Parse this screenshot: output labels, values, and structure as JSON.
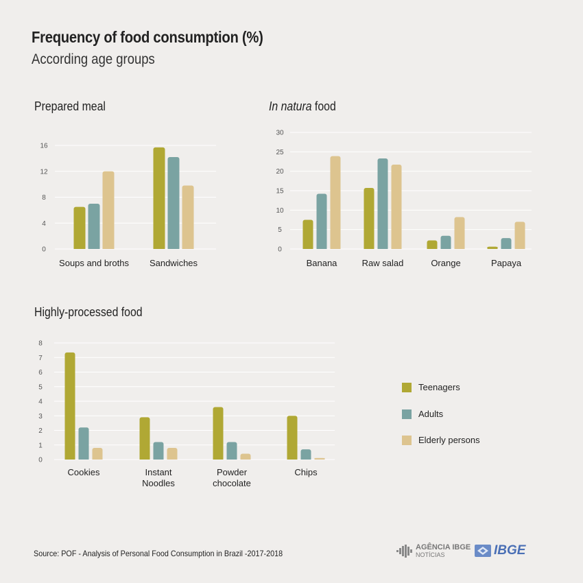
{
  "header": {
    "title": "Frequency of food consumption (%)",
    "subtitle": "According age groups"
  },
  "colors": {
    "teenagers": "#b0a834",
    "adults": "#7aa3a2",
    "elderly": "#ddc48f",
    "grid": "#ffffff",
    "background": "#f0eeec"
  },
  "legend": {
    "items": [
      "Teenagers",
      "Adults",
      "Elderly persons"
    ]
  },
  "chart_data": [
    {
      "id": "prepared",
      "type": "bar",
      "title": "Prepared meal",
      "categories": [
        "Soups and broths",
        "Sandwiches"
      ],
      "yticks": [
        0,
        4,
        8,
        12,
        16
      ],
      "ylim": [
        0,
        16
      ],
      "series": [
        {
          "name": "Teenagers",
          "values": [
            6.5,
            15.7
          ]
        },
        {
          "name": "Adults",
          "values": [
            7.0,
            14.2
          ]
        },
        {
          "name": "Elderly persons",
          "values": [
            12.0,
            9.8
          ]
        }
      ]
    },
    {
      "id": "natura",
      "type": "bar",
      "title_italic": "In natura",
      "title_rest": " food",
      "categories": [
        "Banana",
        "Raw salad",
        "Orange",
        "Papaya"
      ],
      "yticks": [
        0,
        5,
        10,
        15,
        20,
        25,
        30
      ],
      "ylim": [
        0,
        30
      ],
      "series": [
        {
          "name": "Teenagers",
          "values": [
            7.5,
            15.7,
            2.2,
            0.6
          ]
        },
        {
          "name": "Adults",
          "values": [
            14.2,
            23.3,
            3.4,
            2.8
          ]
        },
        {
          "name": "Elderly persons",
          "values": [
            23.9,
            21.7,
            8.2,
            7.0
          ]
        }
      ]
    },
    {
      "id": "processed",
      "type": "bar",
      "title": "Highly-processed food",
      "categories": [
        [
          "Cookies"
        ],
        [
          "Instant",
          "Noodles"
        ],
        [
          "Powder",
          "chocolate"
        ],
        [
          "Chips"
        ]
      ],
      "yticks": [
        0,
        1,
        2,
        3,
        4,
        5,
        6,
        7,
        8
      ],
      "ylim": [
        0,
        8
      ],
      "series": [
        {
          "name": "Teenagers",
          "values": [
            7.35,
            2.9,
            3.6,
            3.0
          ]
        },
        {
          "name": "Adults",
          "values": [
            2.2,
            1.2,
            1.2,
            0.7
          ]
        },
        {
          "name": "Elderly persons",
          "values": [
            0.8,
            0.8,
            0.4,
            0.1
          ]
        }
      ]
    }
  ],
  "footer": {
    "source": "Source: POF - Analysis of Personal Food Consumption in Brazil -2017-2018",
    "agencia_line1": "AGÊNCIA IBGE",
    "agencia_line2": "NOTÍCIAS",
    "ibge": "IBGE"
  }
}
